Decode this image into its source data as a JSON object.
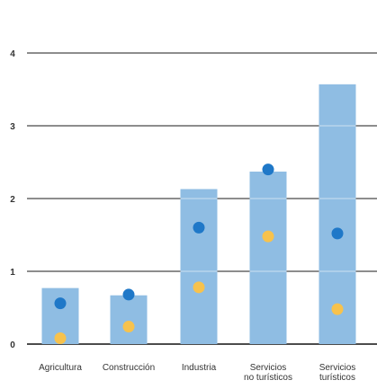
{
  "chart_data": {
    "type": "bar",
    "title": "",
    "xlabel": "",
    "ylabel": "",
    "ylim": [
      0,
      4
    ],
    "yticks": [
      "0",
      "1",
      "2",
      "3",
      "4"
    ],
    "grid": true,
    "categories": [
      [
        "Agricultura"
      ],
      [
        "Construcción"
      ],
      [
        "Industria"
      ],
      [
        "Servicios",
        "no turísticos"
      ],
      [
        "Servicios",
        "turísticos"
      ]
    ],
    "bars": [
      0.77,
      0.67,
      2.13,
      2.37,
      3.57
    ],
    "blue_dots": [
      0.56,
      0.68,
      1.6,
      2.4,
      1.52
    ],
    "yellow_dots": [
      0.08,
      0.24,
      0.78,
      1.48,
      0.48
    ],
    "colors": {
      "bar": "#8fbde3",
      "blue_dot": "#1f78c8",
      "yellow_dot": "#f7c24d",
      "gridline": "#111111"
    }
  }
}
